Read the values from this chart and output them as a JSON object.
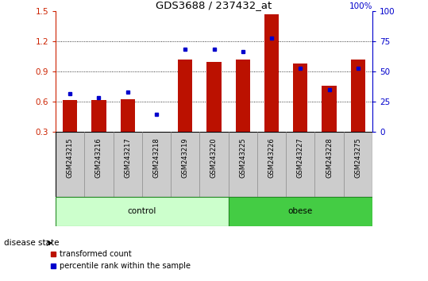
{
  "title": "GDS3688 / 237432_at",
  "samples": [
    "GSM243215",
    "GSM243216",
    "GSM243217",
    "GSM243218",
    "GSM243219",
    "GSM243220",
    "GSM243225",
    "GSM243226",
    "GSM243227",
    "GSM243228",
    "GSM243275"
  ],
  "red_values": [
    0.62,
    0.62,
    0.63,
    0.305,
    1.02,
    1.0,
    1.02,
    1.47,
    0.98,
    0.76,
    1.02
  ],
  "blue_values": [
    0.68,
    0.64,
    0.7,
    0.48,
    1.12,
    1.12,
    1.1,
    1.23,
    0.93,
    0.72,
    0.93
  ],
  "ylim_left": [
    0.3,
    1.5
  ],
  "ylim_right": [
    0,
    100
  ],
  "yticks_left": [
    0.3,
    0.6,
    0.9,
    1.2,
    1.5
  ],
  "yticks_right": [
    0,
    25,
    50,
    75,
    100
  ],
  "control_count": 6,
  "obese_count": 5,
  "group_label": "disease state",
  "red_color": "#bb1100",
  "blue_color": "#0000cc",
  "bar_width": 0.5,
  "legend_red": "transformed count",
  "legend_blue": "percentile rank within the sample",
  "tick_label_color_left": "#cc2200",
  "tick_label_color_right": "#0000cc",
  "ctrl_color": "#ccffcc",
  "obese_color": "#44cc44",
  "xtick_bg": "#cccccc",
  "right_axis_pct_label": "100%"
}
